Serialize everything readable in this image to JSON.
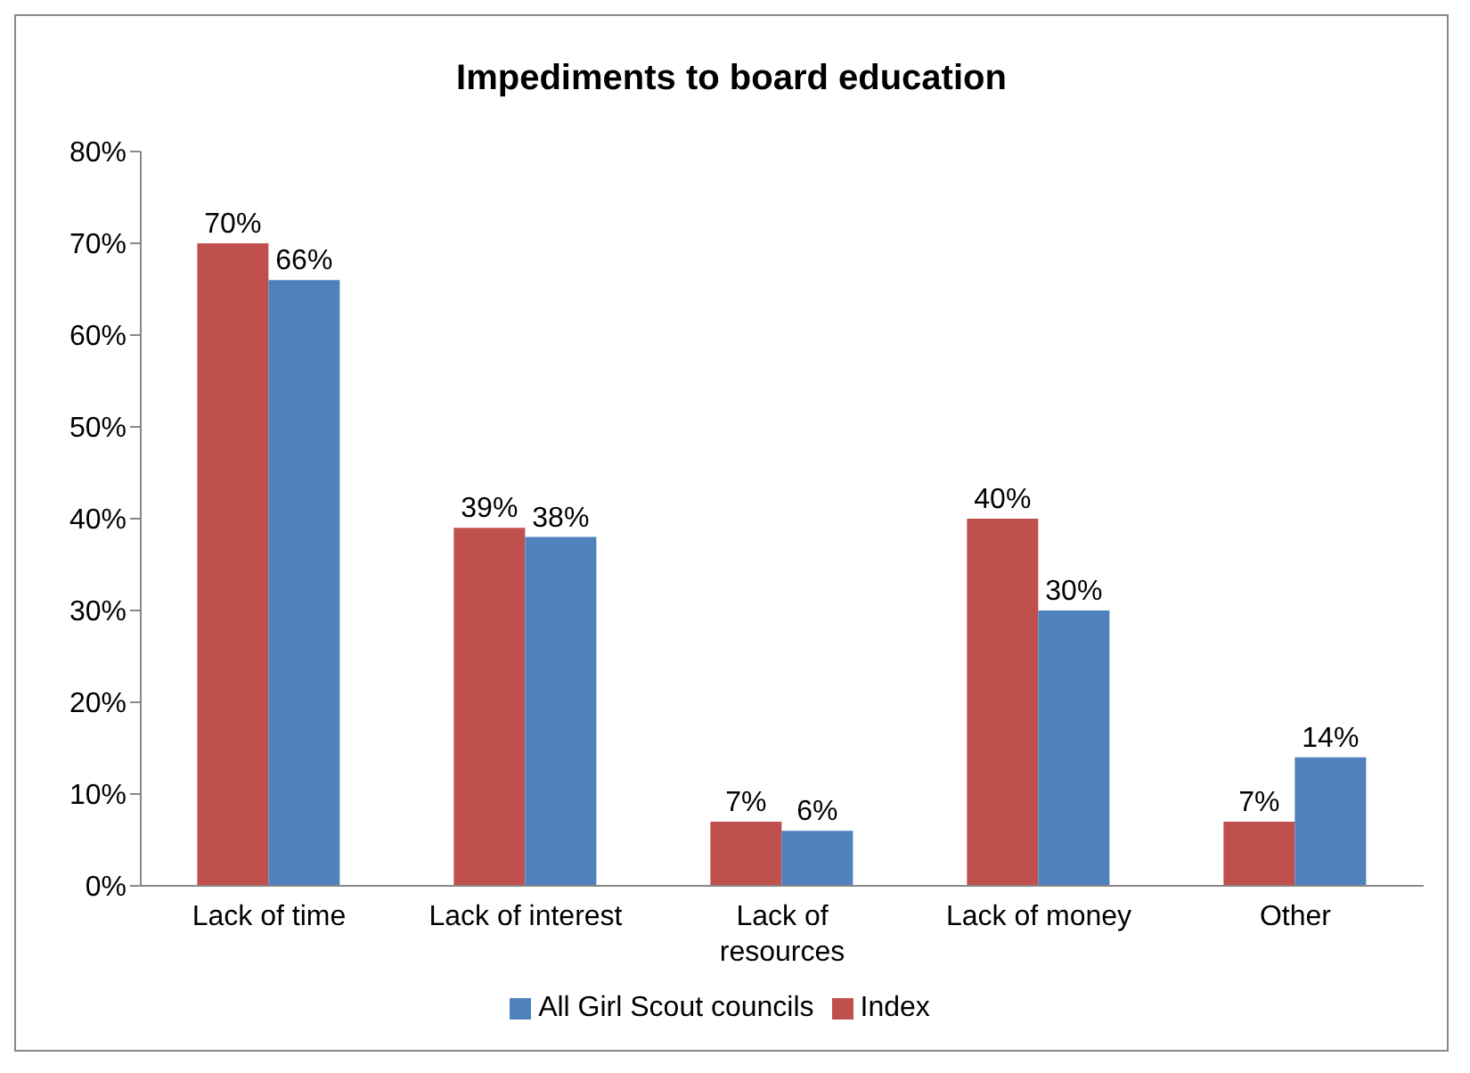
{
  "chart_data": {
    "type": "bar",
    "title": "Impediments to board education",
    "categories": [
      "Lack of time",
      "Lack of interest",
      "Lack of resources",
      "Lack of money",
      "Other"
    ],
    "series": [
      {
        "name": "Index",
        "color": "#c0504d",
        "values": [
          70,
          39,
          7,
          40,
          7
        ],
        "value_labels": [
          "70%",
          "39%",
          "7%",
          "40%",
          "7%"
        ]
      },
      {
        "name": "All Girl Scout councils",
        "color": "#4f81bd",
        "values": [
          66,
          38,
          6,
          30,
          14
        ],
        "value_labels": [
          "66%",
          "38%",
          "6%",
          "30%",
          "14%"
        ]
      }
    ],
    "ylim": [
      0,
      80
    ],
    "yticks": [
      {
        "value": 0,
        "label": "0%"
      },
      {
        "value": 10,
        "label": "10%"
      },
      {
        "value": 20,
        "label": "20%"
      },
      {
        "value": 30,
        "label": "30%"
      },
      {
        "value": 40,
        "label": "40%"
      },
      {
        "value": 50,
        "label": "50%"
      },
      {
        "value": 60,
        "label": "60%"
      },
      {
        "value": 70,
        "label": "70%"
      },
      {
        "value": 80,
        "label": "80%"
      }
    ],
    "grid": false,
    "legend": "bottom"
  }
}
